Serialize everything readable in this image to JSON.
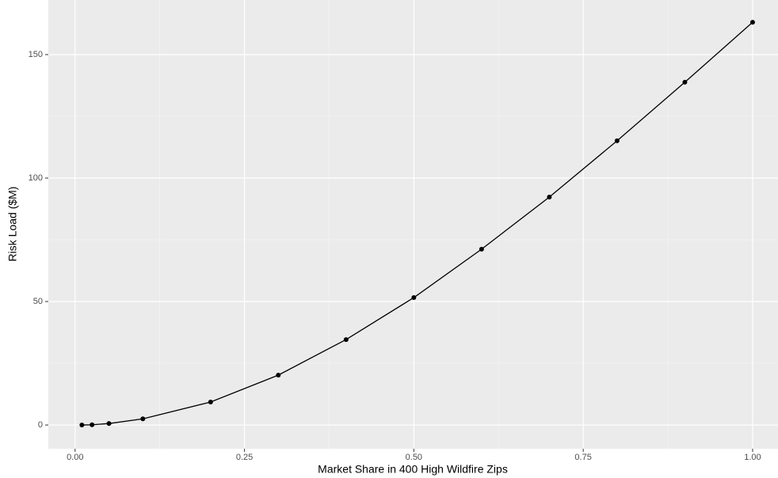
{
  "chart_data": {
    "type": "line",
    "x_label": "Market Share in 400 High Wildfire Zips",
    "y_label": "Risk Load ($M)",
    "x": [
      0.01,
      0.025,
      0.05,
      0.1,
      0.2,
      0.3,
      0.4,
      0.5,
      0.6,
      0.7,
      0.8,
      0.9,
      1.0
    ],
    "series": [
      {
        "color": "#000000",
        "values": [
          0,
          0.1,
          0.6,
          2.5,
          9.3,
          20.2,
          34.6,
          51.6,
          71.2,
          92.3,
          115.1,
          138.8,
          163.1
        ]
      }
    ],
    "xlim": [
      -0.0395,
      1.0375
    ],
    "ylim": [
      -9.6,
      172.1
    ],
    "xticks": [
      {
        "value": 0,
        "label": "0.00"
      },
      {
        "value": 0.25,
        "label": "0.25"
      },
      {
        "value": 0.5,
        "label": "0.50"
      },
      {
        "value": 0.75,
        "label": "0.75"
      },
      {
        "value": 1,
        "label": "1.00"
      }
    ],
    "yticks": [
      0,
      50,
      100,
      150
    ],
    "grid": true
  }
}
